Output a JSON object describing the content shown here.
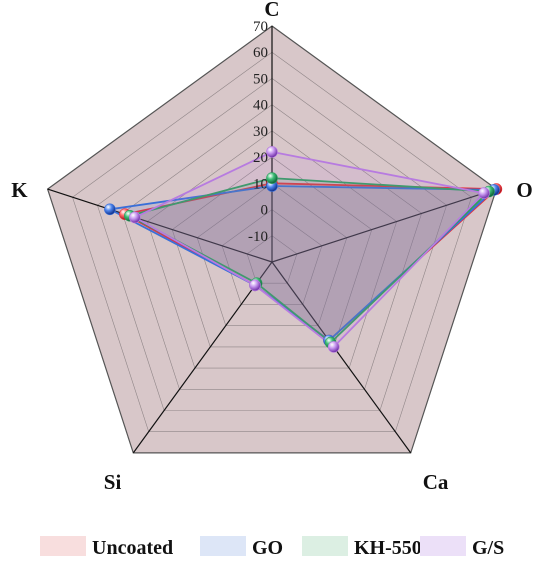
{
  "chart_data": {
    "type": "radar",
    "axes": [
      "C",
      "O",
      "Ca",
      "Si",
      "K"
    ],
    "ticks": [
      "-10",
      "0",
      "10",
      "20",
      "30",
      "40",
      "50",
      "60",
      "70"
    ],
    "range": [
      -20,
      70
    ],
    "series": [
      {
        "name": "Uncoated",
        "values": [
          10,
          70,
          17,
          -9,
          39
        ],
        "color": "#e8303a",
        "swatch": "#f8dede"
      },
      {
        "name": "GO",
        "values": [
          9,
          69,
          17,
          -9,
          45
        ],
        "color": "#3a6fd8",
        "swatch": "#dde6f7"
      },
      {
        "name": "KH-550",
        "values": [
          12,
          67,
          18,
          -10,
          37
        ],
        "color": "#2e9e5e",
        "swatch": "#dcefe3"
      },
      {
        "name": "G/S",
        "values": [
          22,
          65,
          20,
          -9,
          35
        ],
        "color": "#b77be0",
        "swatch": "#ece0f8"
      }
    ],
    "legend_position": "bottom",
    "grid": true
  }
}
